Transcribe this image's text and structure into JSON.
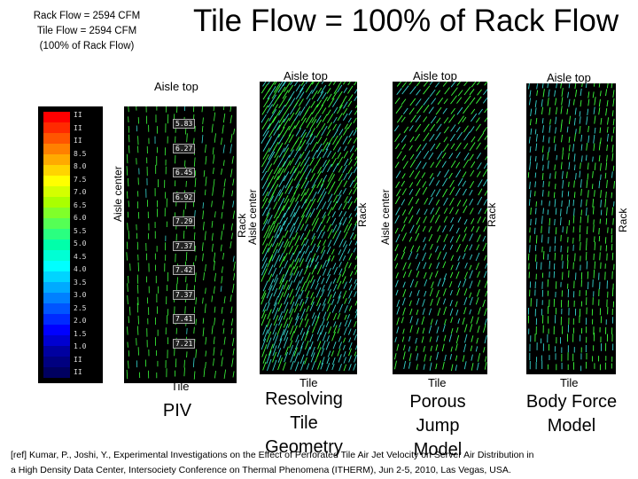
{
  "info_box": {
    "line1": "Rack Flow = 2594 CFM",
    "line2": "Tile Flow = 2594 CFM",
    "line3": "(100% of Rack Flow)"
  },
  "title": "Tile Flow = 100% of Rack Flow",
  "panels": {
    "piv": {
      "aisle_top": "Aisle top",
      "aisle_center": "Aisle center",
      "rack": "Rack",
      "tile": "Tile",
      "caption": "PIV",
      "velocity_labels": [
        "5.83",
        "6.27",
        "6.45",
        "6.92",
        "7.29",
        "7.37",
        "7.42",
        "7.37",
        "7.41",
        "7.21"
      ],
      "scale_ticks": [
        "II",
        "II",
        "II",
        "8.5",
        "8.0",
        "7.5",
        "7.0",
        "6.5",
        "6.0",
        "5.5",
        "5.0",
        "4.5",
        "4.0",
        "3.5",
        "3.0",
        "2.5",
        "2.0",
        "1.5",
        "1.0",
        "II",
        "II"
      ]
    },
    "resolving": {
      "aisle_top": "Aisle top",
      "aisle_center": "Aisle center",
      "rack": "Rack",
      "tile": "Tile",
      "caption_lines": [
        "Resolving",
        "Tile",
        "Geometry"
      ]
    },
    "porous": {
      "aisle_top": "Aisle top",
      "aisle_center": "Aisle center",
      "rack": "Rack",
      "tile": "Tile",
      "caption_lines": [
        "Porous",
        "Jump",
        "Model"
      ]
    },
    "bodyforce": {
      "aisle_top": "Aisle top",
      "rack": "Rack",
      "tile": "Tile",
      "caption_lines": [
        "Body Force",
        "Model"
      ]
    }
  },
  "reference": {
    "line1": "[ref] Kumar, P., Joshi, Y., Experimental Investigations on the Effect of Perforated Tile Air Jet Velocity on Server Air Distribution in",
    "line2": "a High Density Data Center, Intersociety Conference on Thermal Phenomena (ITHERM), Jun 2-5, 2010, Las Vegas, USA."
  },
  "colors": {
    "piv_field": "#000000",
    "vector_green": "#3cff3c",
    "vector_cyan": "#35d6d0",
    "scale_top": "#ff0000",
    "scale_bottom": "#0000ff"
  }
}
